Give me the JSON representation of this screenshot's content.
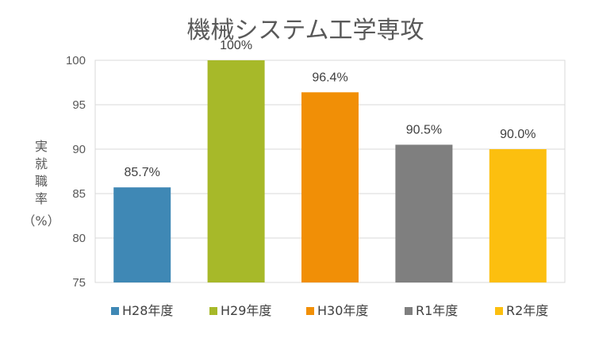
{
  "chart_data": {
    "type": "bar",
    "title": "機械システム工学専攻",
    "ylabel_lines": [
      "実",
      "就",
      "職",
      "率",
      "（%）"
    ],
    "xlabel": "",
    "ylim": [
      75,
      100
    ],
    "yticks": [
      75,
      80,
      85,
      90,
      95,
      100
    ],
    "grid": true,
    "legend_position": "bottom",
    "categories": [
      "H28年度",
      "H29年度",
      "H30年度",
      "R1年度",
      "R2年度"
    ],
    "values": [
      85.7,
      100,
      96.4,
      90.5,
      90.0
    ],
    "data_labels": [
      "85.7%",
      "100%",
      "96.4%",
      "90.5%",
      "90.0%"
    ],
    "colors": [
      "#3f88b5",
      "#a7b929",
      "#f18f06",
      "#7f7f7f",
      "#fcbf0f"
    ]
  }
}
